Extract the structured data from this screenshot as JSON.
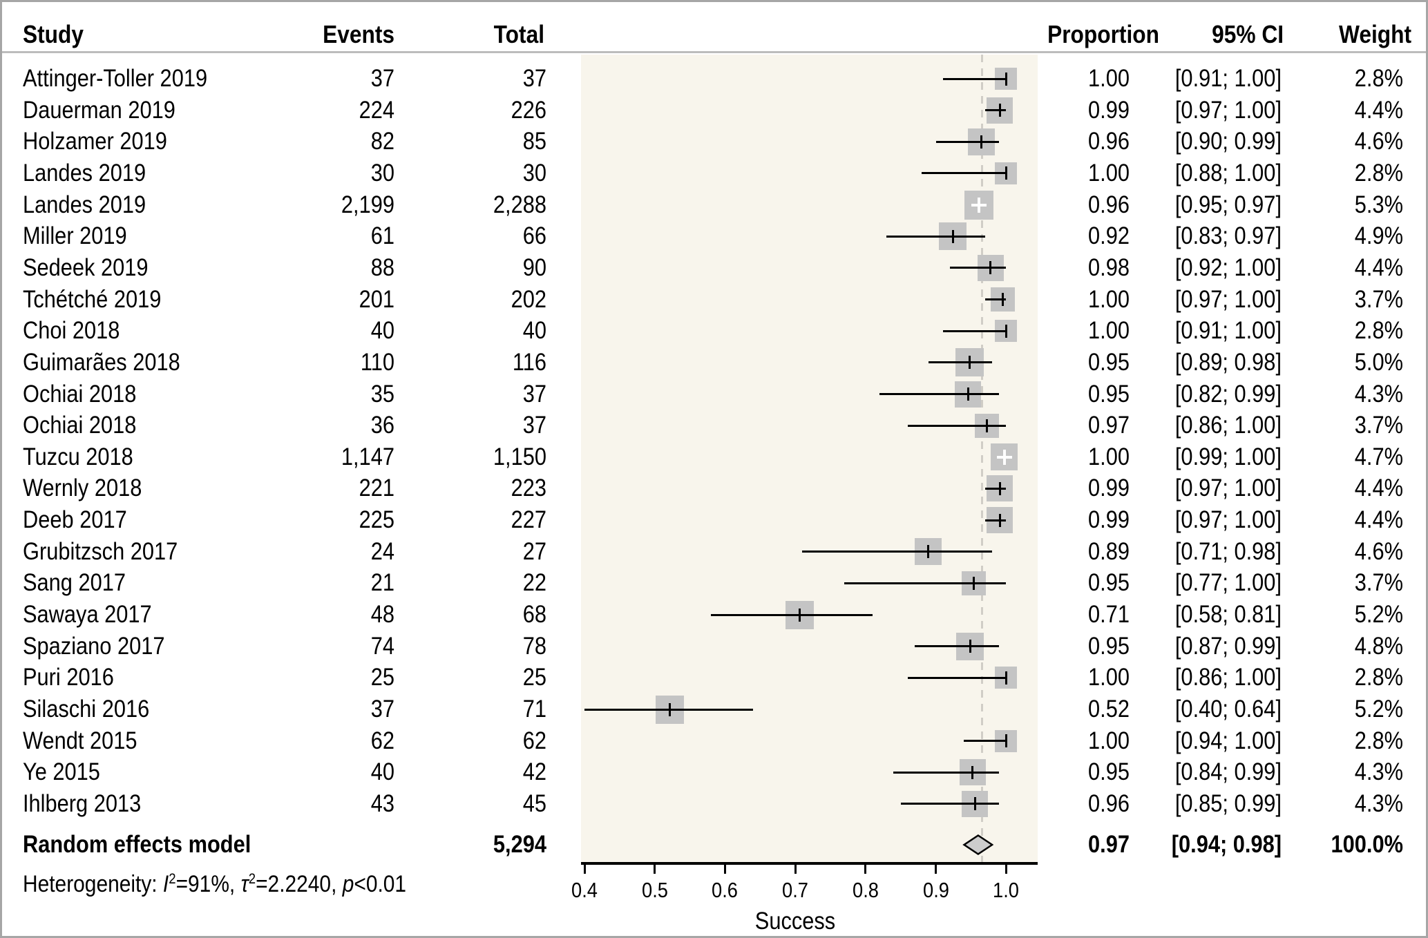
{
  "columns": {
    "study": "Study",
    "events": "Events",
    "total": "Total",
    "proportion": "Proportion",
    "ci": "95% CI",
    "weight": "Weight"
  },
  "chart_data": {
    "type": "forest",
    "xlabel": "Success",
    "xticks": [
      "0.4",
      "0.5",
      "0.6",
      "0.7",
      "0.8",
      "0.9",
      "1.0"
    ],
    "xlim": [
      0.4,
      1.0
    ],
    "ref_line": 0.966,
    "legend_position": "none",
    "grid": false,
    "colors": {
      "panel_bg": "#f8f5ec",
      "square": "#c4c4c4",
      "diamond_fill": "#cdcdcd",
      "ref_line_dash": "#d0cdc6",
      "ci_line": "#000000",
      "frame_border": "#a6a6a6"
    },
    "studies": [
      {
        "study": "Attinger-Toller 2019",
        "events": "37",
        "total": "37",
        "estimate": 1.0,
        "lo": 0.91,
        "hi": 1.0,
        "proportion": "1.00",
        "ci": "[0.91; 1.00]",
        "weight": 2.8,
        "weight_text": "2.8%",
        "marker": "black"
      },
      {
        "study": "Dauerman 2019",
        "events": "224",
        "total": "226",
        "estimate": 0.9912,
        "lo": 0.97,
        "hi": 1.0,
        "proportion": "0.99",
        "ci": "[0.97; 1.00]",
        "weight": 4.4,
        "weight_text": "4.4%",
        "marker": "black"
      },
      {
        "study": "Holzamer 2019",
        "events": "82",
        "total": "85",
        "estimate": 0.9647,
        "lo": 0.9,
        "hi": 0.99,
        "proportion": "0.96",
        "ci": "[0.90; 0.99]",
        "weight": 4.6,
        "weight_text": "4.6%",
        "marker": "black"
      },
      {
        "study": "Landes 2019",
        "events": "30",
        "total": "30",
        "estimate": 1.0,
        "lo": 0.88,
        "hi": 1.0,
        "proportion": "1.00",
        "ci": "[0.88; 1.00]",
        "weight": 2.8,
        "weight_text": "2.8%",
        "marker": "black"
      },
      {
        "study": "Landes 2019",
        "events": "2,199",
        "total": "2,288",
        "estimate": 0.9611,
        "lo": 0.95,
        "hi": 0.97,
        "proportion": "0.96",
        "ci": "[0.95; 0.97]",
        "weight": 5.3,
        "weight_text": "5.3%",
        "marker": "white"
      },
      {
        "study": "Miller 2019",
        "events": "61",
        "total": "66",
        "estimate": 0.9242,
        "lo": 0.83,
        "hi": 0.97,
        "proportion": "0.92",
        "ci": "[0.83; 0.97]",
        "weight": 4.9,
        "weight_text": "4.9%",
        "marker": "black"
      },
      {
        "study": "Sedeek 2019",
        "events": "88",
        "total": "90",
        "estimate": 0.9778,
        "lo": 0.92,
        "hi": 1.0,
        "proportion": "0.98",
        "ci": "[0.92; 1.00]",
        "weight": 4.4,
        "weight_text": "4.4%",
        "marker": "black"
      },
      {
        "study": "Tchétché 2019",
        "events": "201",
        "total": "202",
        "estimate": 0.995,
        "lo": 0.97,
        "hi": 1.0,
        "proportion": "1.00",
        "ci": "[0.97; 1.00]",
        "weight": 3.7,
        "weight_text": "3.7%",
        "marker": "black"
      },
      {
        "study": "Choi 2018",
        "events": "40",
        "total": "40",
        "estimate": 1.0,
        "lo": 0.91,
        "hi": 1.0,
        "proportion": "1.00",
        "ci": "[0.91; 1.00]",
        "weight": 2.8,
        "weight_text": "2.8%",
        "marker": "black"
      },
      {
        "study": "Guimarães 2018",
        "events": "110",
        "total": "116",
        "estimate": 0.9483,
        "lo": 0.89,
        "hi": 0.98,
        "proportion": "0.95",
        "ci": "[0.89; 0.98]",
        "weight": 5.0,
        "weight_text": "5.0%",
        "marker": "black"
      },
      {
        "study": "Ochiai 2018",
        "events": "35",
        "total": "37",
        "estimate": 0.9459,
        "lo": 0.82,
        "hi": 0.99,
        "proportion": "0.95",
        "ci": "[0.82; 0.99]",
        "weight": 4.3,
        "weight_text": "4.3%",
        "marker": "black"
      },
      {
        "study": "Ochiai 2018",
        "events": "36",
        "total": "37",
        "estimate": 0.973,
        "lo": 0.86,
        "hi": 1.0,
        "proportion": "0.97",
        "ci": "[0.86; 1.00]",
        "weight": 3.7,
        "weight_text": "3.7%",
        "marker": "black"
      },
      {
        "study": "Tuzcu 2018",
        "events": "1,147",
        "total": "1,150",
        "estimate": 0.9974,
        "lo": 0.99,
        "hi": 1.0,
        "proportion": "1.00",
        "ci": "[0.99; 1.00]",
        "weight": 4.7,
        "weight_text": "4.7%",
        "marker": "white"
      },
      {
        "study": "Wernly 2018",
        "events": "221",
        "total": "223",
        "estimate": 0.991,
        "lo": 0.97,
        "hi": 1.0,
        "proportion": "0.99",
        "ci": "[0.97; 1.00]",
        "weight": 4.4,
        "weight_text": "4.4%",
        "marker": "black"
      },
      {
        "study": "Deeb 2017",
        "events": "225",
        "total": "227",
        "estimate": 0.9912,
        "lo": 0.97,
        "hi": 1.0,
        "proportion": "0.99",
        "ci": "[0.97; 1.00]",
        "weight": 4.4,
        "weight_text": "4.4%",
        "marker": "black"
      },
      {
        "study": "Grubitzsch 2017",
        "events": "24",
        "total": "27",
        "estimate": 0.8889,
        "lo": 0.71,
        "hi": 0.98,
        "proportion": "0.89",
        "ci": "[0.71; 0.98]",
        "weight": 4.6,
        "weight_text": "4.6%",
        "marker": "black"
      },
      {
        "study": "Sang 2017",
        "events": "21",
        "total": "22",
        "estimate": 0.9545,
        "lo": 0.77,
        "hi": 1.0,
        "proportion": "0.95",
        "ci": "[0.77; 1.00]",
        "weight": 3.7,
        "weight_text": "3.7%",
        "marker": "black"
      },
      {
        "study": "Sawaya 2017",
        "events": "48",
        "total": "68",
        "estimate": 0.7059,
        "lo": 0.58,
        "hi": 0.81,
        "proportion": "0.71",
        "ci": "[0.58; 0.81]",
        "weight": 5.2,
        "weight_text": "5.2%",
        "marker": "black"
      },
      {
        "study": "Spaziano 2017",
        "events": "74",
        "total": "78",
        "estimate": 0.9487,
        "lo": 0.87,
        "hi": 0.99,
        "proportion": "0.95",
        "ci": "[0.87; 0.99]",
        "weight": 4.8,
        "weight_text": "4.8%",
        "marker": "black"
      },
      {
        "study": "Puri 2016",
        "events": "25",
        "total": "25",
        "estimate": 1.0,
        "lo": 0.86,
        "hi": 1.0,
        "proportion": "1.00",
        "ci": "[0.86; 1.00]",
        "weight": 2.8,
        "weight_text": "2.8%",
        "marker": "black"
      },
      {
        "study": "Silaschi 2016",
        "events": "37",
        "total": "71",
        "estimate": 0.5211,
        "lo": 0.4,
        "hi": 0.64,
        "proportion": "0.52",
        "ci": "[0.40; 0.64]",
        "weight": 5.2,
        "weight_text": "5.2%",
        "marker": "black"
      },
      {
        "study": "Wendt 2015",
        "events": "62",
        "total": "62",
        "estimate": 1.0,
        "lo": 0.94,
        "hi": 1.0,
        "proportion": "1.00",
        "ci": "[0.94; 1.00]",
        "weight": 2.8,
        "weight_text": "2.8%",
        "marker": "black"
      },
      {
        "study": "Ye 2015",
        "events": "40",
        "total": "42",
        "estimate": 0.9524,
        "lo": 0.84,
        "hi": 0.99,
        "proportion": "0.95",
        "ci": "[0.84; 0.99]",
        "weight": 4.3,
        "weight_text": "4.3%",
        "marker": "black"
      },
      {
        "study": "Ihlberg 2013",
        "events": "43",
        "total": "45",
        "estimate": 0.9556,
        "lo": 0.85,
        "hi": 0.99,
        "proportion": "0.96",
        "ci": "[0.85; 0.99]",
        "weight": 4.3,
        "weight_text": "4.3%",
        "marker": "black"
      }
    ],
    "summary": {
      "label": "Random effects model",
      "total": "5,294",
      "estimate": 0.966,
      "lo": 0.94,
      "hi": 0.98,
      "proportion": "0.97",
      "ci": "[0.94; 0.98]",
      "weight_text": "100.0%"
    },
    "heterogeneity": [
      {
        "t": "Heterogeneity: "
      },
      {
        "t": "I",
        "i": true
      },
      {
        "t": "2",
        "sup": true
      },
      {
        "t": "=91%, "
      },
      {
        "t": "τ",
        "i": true
      },
      {
        "t": "2",
        "sup": true
      },
      {
        "t": "=2.2240, "
      },
      {
        "t": "p",
        "i": true
      },
      {
        "t": "<0.01"
      }
    ]
  }
}
